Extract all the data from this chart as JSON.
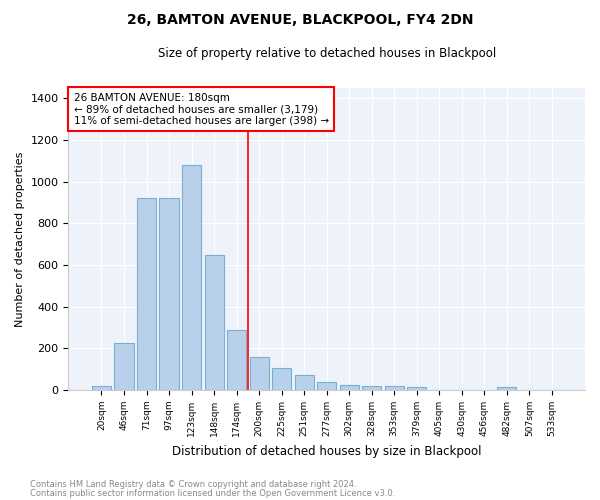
{
  "title1": "26, BAMTON AVENUE, BLACKPOOL, FY4 2DN",
  "title2": "Size of property relative to detached houses in Blackpool",
  "xlabel": "Distribution of detached houses by size in Blackpool",
  "ylabel": "Number of detached properties",
  "categories": [
    "20sqm",
    "46sqm",
    "71sqm",
    "97sqm",
    "123sqm",
    "148sqm",
    "174sqm",
    "200sqm",
    "225sqm",
    "251sqm",
    "277sqm",
    "302sqm",
    "328sqm",
    "353sqm",
    "379sqm",
    "405sqm",
    "430sqm",
    "456sqm",
    "482sqm",
    "507sqm",
    "533sqm"
  ],
  "values": [
    20,
    225,
    920,
    920,
    1080,
    650,
    290,
    160,
    105,
    70,
    40,
    25,
    20,
    18,
    15,
    0,
    0,
    0,
    15,
    0,
    0
  ],
  "bar_color": "#b8d0ea",
  "bar_edge_color": "#7aafd4",
  "annotation_title": "26 BAMTON AVENUE: 180sqm",
  "annotation_line1": "← 89% of detached houses are smaller (3,179)",
  "annotation_line2": "11% of semi-detached houses are larger (398) →",
  "red_line_x": 6.5,
  "ylim": [
    0,
    1450
  ],
  "yticks": [
    0,
    200,
    400,
    600,
    800,
    1000,
    1200,
    1400
  ],
  "footer1": "Contains HM Land Registry data © Crown copyright and database right 2024.",
  "footer2": "Contains public sector information licensed under the Open Government Licence v3.0.",
  "plot_bg_color": "#eef2fa"
}
